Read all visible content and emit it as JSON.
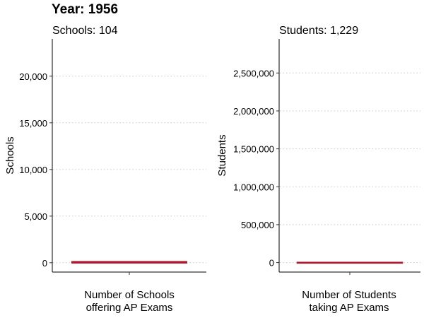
{
  "title": "Year: 1956",
  "chart_data": [
    {
      "type": "bar",
      "subtitle": "Schools: 104",
      "xlabel": [
        "Number of Schools",
        "offering AP Exams"
      ],
      "ylabel": "Schools",
      "categories": [
        "Number of Schools offering AP Exams"
      ],
      "values": [
        104
      ],
      "ylim": [
        -1000,
        24000
      ],
      "yticks": [
        0,
        5000,
        10000,
        15000,
        20000
      ],
      "ytick_labels": [
        "0",
        "5,000",
        "10,000",
        "15,000",
        "20,000"
      ],
      "grid": "horizontal dotted",
      "bar_color": "#b2182b"
    },
    {
      "type": "bar",
      "subtitle": "Students: 1,229",
      "xlabel": [
        "Number of Students",
        "taking AP Exams"
      ],
      "ylabel": "Students",
      "categories": [
        "Number of Students taking AP Exams"
      ],
      "values": [
        1229
      ],
      "ylim": [
        -125000,
        2950000
      ],
      "yticks": [
        0,
        500000,
        1000000,
        1500000,
        2000000,
        2500000
      ],
      "ytick_labels": [
        "0",
        "500,000",
        "1,000,000",
        "1,500,000",
        "2,000,000",
        "2,500,000"
      ],
      "grid": "horizontal dotted",
      "bar_color": "#b2182b"
    }
  ]
}
